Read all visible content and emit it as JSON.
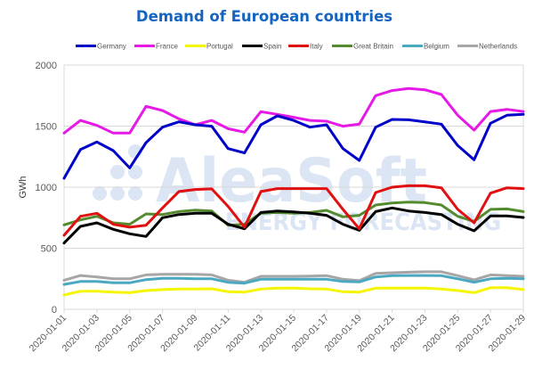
{
  "chart_data": {
    "type": "line",
    "title": "Demand of European countries",
    "xlabel": "",
    "ylabel": "GWh",
    "ylim": [
      0,
      2000
    ],
    "yticks": [
      0,
      500,
      1000,
      1500,
      2000
    ],
    "grid": true,
    "legend_position": "top",
    "watermark": {
      "brand": "AleaSoft",
      "tagline": "ENERGY FORECASTING"
    },
    "x": [
      "2020-01-01",
      "2020-01-02",
      "2020-01-03",
      "2020-01-04",
      "2020-01-05",
      "2020-01-06",
      "2020-01-07",
      "2020-01-08",
      "2020-01-09",
      "2020-01-10",
      "2020-01-11",
      "2020-01-12",
      "2020-01-13",
      "2020-01-14",
      "2020-01-15",
      "2020-01-16",
      "2020-01-17",
      "2020-01-18",
      "2020-01-19",
      "2020-01-20",
      "2020-01-21",
      "2020-01-22",
      "2020-01-23",
      "2020-01-24",
      "2020-01-25",
      "2020-01-26",
      "2020-01-27",
      "2020-01-28",
      "2020-01-29"
    ],
    "xtick_labels": [
      "2020-01-01",
      "2020-01-03",
      "2020-01-05",
      "2020-01-07",
      "2020-01-09",
      "2020-01-11",
      "2020-01-13",
      "2020-01-15",
      "2020-01-17",
      "2020-01-19",
      "2020-01-21",
      "2020-01-23",
      "2020-01-25",
      "2020-01-27",
      "2020-01-29"
    ],
    "series": [
      {
        "name": "Germany",
        "color": "#0000c8",
        "values": [
          1073,
          1309,
          1370,
          1299,
          1158,
          1365,
          1491,
          1535,
          1511,
          1499,
          1316,
          1280,
          1511,
          1584,
          1547,
          1491,
          1511,
          1316,
          1219,
          1491,
          1555,
          1552,
          1535,
          1516,
          1341,
          1224,
          1523,
          1589,
          1596
        ]
      },
      {
        "name": "France",
        "color": "#e619e6",
        "values": [
          1443,
          1547,
          1506,
          1443,
          1443,
          1662,
          1628,
          1560,
          1511,
          1547,
          1479,
          1450,
          1618,
          1596,
          1572,
          1547,
          1540,
          1499,
          1516,
          1750,
          1791,
          1808,
          1798,
          1759,
          1589,
          1467,
          1620,
          1637,
          1620
        ]
      },
      {
        "name": "Portugal",
        "color": "#f5f500",
        "values": [
          117,
          148,
          148,
          141,
          136,
          153,
          161,
          166,
          166,
          168,
          144,
          141,
          166,
          173,
          173,
          168,
          166,
          144,
          141,
          173,
          173,
          173,
          173,
          166,
          153,
          136,
          177,
          177,
          161
        ]
      },
      {
        "name": "Spain",
        "color": "#000000",
        "values": [
          542,
          679,
          708,
          655,
          618,
          596,
          750,
          776,
          786,
          786,
          696,
          659,
          793,
          805,
          798,
          786,
          769,
          696,
          647,
          800,
          830,
          805,
          793,
          776,
          696,
          642,
          764,
          764,
          752
        ]
      },
      {
        "name": "Italy",
        "color": "#e01010",
        "values": [
          606,
          761,
          786,
          696,
          672,
          688,
          830,
          964,
          981,
          986,
          842,
          672,
          964,
          988,
          988,
          988,
          988,
          818,
          659,
          956,
          1000,
          1012,
          1012,
          995,
          818,
          708,
          951,
          995,
          988
        ]
      },
      {
        "name": "Great Britain",
        "color": "#558b2f",
        "values": [
          691,
          732,
          761,
          708,
          696,
          781,
          776,
          800,
          812,
          805,
          688,
          696,
          786,
          793,
          786,
          793,
          810,
          757,
          769,
          854,
          871,
          878,
          874,
          854,
          761,
          720,
          818,
          822,
          800
        ]
      },
      {
        "name": "Belgium",
        "color": "#4aa8c0",
        "values": [
          204,
          228,
          228,
          217,
          217,
          243,
          253,
          253,
          250,
          250,
          221,
          214,
          246,
          246,
          246,
          246,
          246,
          228,
          224,
          265,
          275,
          277,
          277,
          275,
          250,
          221,
          250,
          253,
          250
        ]
      },
      {
        "name": "Netherlands",
        "color": "#a6a6a6",
        "values": [
          238,
          277,
          265,
          250,
          250,
          282,
          287,
          287,
          287,
          282,
          238,
          221,
          270,
          270,
          270,
          272,
          275,
          246,
          234,
          294,
          299,
          304,
          307,
          307,
          275,
          241,
          282,
          275,
          270
        ]
      }
    ]
  }
}
